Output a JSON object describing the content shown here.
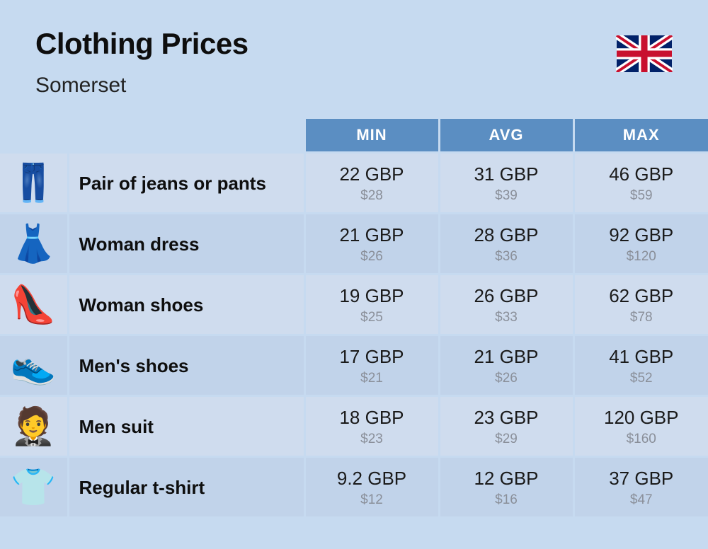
{
  "header": {
    "title": "Clothing Prices",
    "subtitle": "Somerset",
    "flag": "uk"
  },
  "table": {
    "columns": [
      "MIN",
      "AVG",
      "MAX"
    ],
    "header_bg": "#5b8ec2",
    "header_fg": "#ffffff",
    "row_bg_a": "#cfdcee",
    "row_bg_b": "#c1d3ea",
    "grid_color": "#c6daf0",
    "primary_color": "#1a1a1a",
    "secondary_color": "#8a8f99",
    "label_fontsize": 26,
    "primary_fontsize": 26,
    "secondary_fontsize": 19,
    "rows": [
      {
        "icon": "jeans-icon",
        "emoji": "👖",
        "label": "Pair of jeans or pants",
        "min": {
          "primary": "22 GBP",
          "secondary": "$28"
        },
        "avg": {
          "primary": "31 GBP",
          "secondary": "$39"
        },
        "max": {
          "primary": "46 GBP",
          "secondary": "$59"
        }
      },
      {
        "icon": "dress-icon",
        "emoji": "👗",
        "label": "Woman dress",
        "min": {
          "primary": "21 GBP",
          "secondary": "$26"
        },
        "avg": {
          "primary": "28 GBP",
          "secondary": "$36"
        },
        "max": {
          "primary": "92 GBP",
          "secondary": "$120"
        }
      },
      {
        "icon": "high-heel-icon",
        "emoji": "👠",
        "label": "Woman shoes",
        "min": {
          "primary": "19 GBP",
          "secondary": "$25"
        },
        "avg": {
          "primary": "26 GBP",
          "secondary": "$33"
        },
        "max": {
          "primary": "62 GBP",
          "secondary": "$78"
        }
      },
      {
        "icon": "sneaker-icon",
        "emoji": "👟",
        "label": "Men's shoes",
        "min": {
          "primary": "17 GBP",
          "secondary": "$21"
        },
        "avg": {
          "primary": "21 GBP",
          "secondary": "$26"
        },
        "max": {
          "primary": "41 GBP",
          "secondary": "$52"
        }
      },
      {
        "icon": "suit-icon",
        "emoji": "🤵",
        "label": "Men suit",
        "min": {
          "primary": "18 GBP",
          "secondary": "$23"
        },
        "avg": {
          "primary": "23 GBP",
          "secondary": "$29"
        },
        "max": {
          "primary": "120 GBP",
          "secondary": "$160"
        }
      },
      {
        "icon": "tshirt-icon",
        "emoji": "👕",
        "label": "Regular t-shirt",
        "min": {
          "primary": "9.2 GBP",
          "secondary": "$12"
        },
        "avg": {
          "primary": "12 GBP",
          "secondary": "$16"
        },
        "max": {
          "primary": "37 GBP",
          "secondary": "$47"
        }
      }
    ]
  },
  "colors": {
    "background": "#c6daf0",
    "title": "#0e0e0e"
  }
}
